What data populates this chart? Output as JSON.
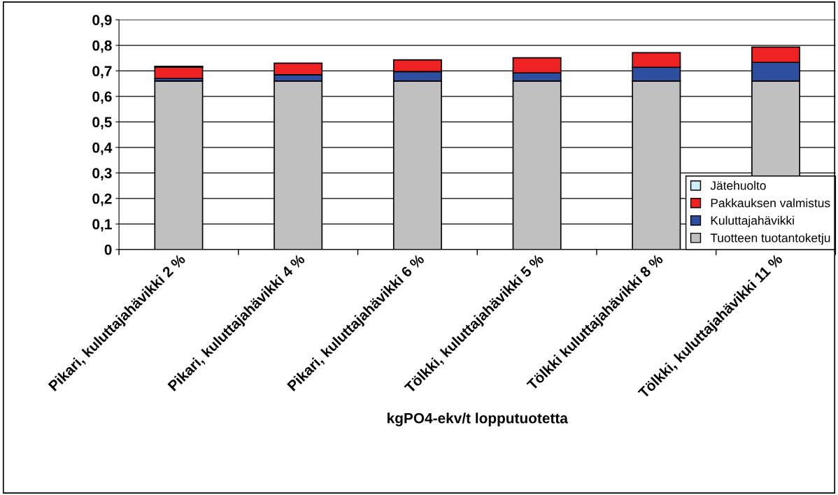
{
  "chart_data": {
    "type": "bar",
    "stacked": true,
    "xlabel": "kgPO4-ekv/t lopputuotetta",
    "categories": [
      "Pikari, kuluttajahävikki 2 %",
      "Pikari, kuluttajahävikki 4 %",
      "Pikari, kuluttajahävikki 6 %",
      "Tölkki, kuluttajahävikki 5 %",
      "Tölkki kuluttajahävikki 8 %",
      "Tölkki, kuluttajahävikki 11 %"
    ],
    "series": [
      {
        "name": "Tuotteen tuotantoketju",
        "color": "#c0c0c0",
        "values": [
          0.66,
          0.66,
          0.66,
          0.66,
          0.66,
          0.66
        ]
      },
      {
        "name": "Kuluttajahävikki",
        "color": "#2e4fa0",
        "values": [
          0.01,
          0.025,
          0.037,
          0.032,
          0.054,
          0.073
        ]
      },
      {
        "name": "Pakkauksen valmistus",
        "color": "#ee2222",
        "values": [
          0.044,
          0.045,
          0.046,
          0.059,
          0.057,
          0.06
        ]
      },
      {
        "name": "Jätehuolto",
        "color": "#cceef4",
        "values": [
          0.004,
          0,
          0,
          0,
          0,
          0
        ]
      }
    ],
    "ylim": [
      0,
      0.9
    ],
    "yticks": [
      0,
      {
        "value": 0.1,
        "label": "0,1"
      },
      {
        "value": 0.2,
        "label": "0,2"
      },
      {
        "value": 0.3,
        "label": "0,3"
      },
      {
        "value": 0.4,
        "label": "0,4"
      },
      {
        "value": 0.5,
        "label": "0,5"
      },
      {
        "value": 0.6,
        "label": "0,6"
      },
      {
        "value": 0.7,
        "label": "0,7"
      },
      {
        "value": 0.8,
        "label": "0,8"
      },
      {
        "value": 0.9,
        "label": "0,9"
      }
    ],
    "grid": "y",
    "legend": "right"
  }
}
